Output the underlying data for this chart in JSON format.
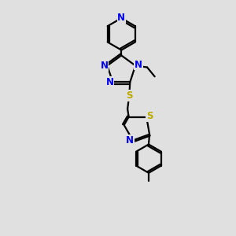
{
  "background_color": "#e0e0e0",
  "bond_color": "#000000",
  "N_color": "#0000ee",
  "S_color": "#bbaa00",
  "line_width": 1.6,
  "font_size": 8.5,
  "fig_size": [
    3.0,
    3.0
  ],
  "dpi": 100,
  "xlim": [
    0,
    10
  ],
  "ylim": [
    0,
    14
  ]
}
